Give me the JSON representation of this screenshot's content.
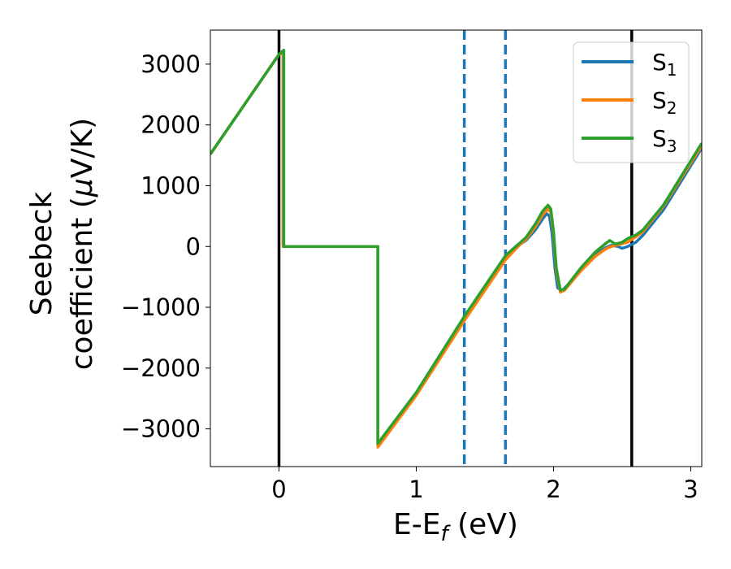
{
  "chart_data": {
    "type": "line",
    "title": "",
    "xlabel": "E-E",
    "xlabel_sub": "f",
    "xlabel_unit": " (eV)",
    "ylabel_line1": "Seebeck",
    "ylabel_line2_pre": "coefficient  (",
    "ylabel_line2_mu": "μ",
    "ylabel_line2_post": "V/K)",
    "xlim": [
      -0.5,
      3.08
    ],
    "ylim": [
      -3620,
      3560
    ],
    "xticks": [
      0,
      1,
      2,
      3
    ],
    "xtick_labels": [
      "0",
      "1",
      "2",
      "3"
    ],
    "yticks": [
      -3000,
      -2000,
      -1000,
      0,
      1000,
      2000,
      3000
    ],
    "ytick_labels": [
      "−3000",
      "−2000",
      "−1000",
      "0",
      "1000",
      "2000",
      "3000"
    ],
    "legend_placement": "top-right",
    "grid": false,
    "vlines_solid": [
      0.0,
      2.57
    ],
    "vlines_dashed": [
      1.35,
      1.65
    ],
    "vline_solid_color": "#000000",
    "vline_dashed_color": "#1f77b4",
    "series": [
      {
        "name": "S",
        "sub": "1",
        "color": "#1f77b4",
        "points": [
          [
            -0.5,
            1520
          ],
          [
            0.0,
            3160
          ],
          [
            0.03,
            3180
          ],
          [
            0.03,
            0
          ],
          [
            0.72,
            0
          ],
          [
            0.72,
            -3270
          ],
          [
            1.0,
            -2420
          ],
          [
            1.35,
            -1180
          ],
          [
            1.65,
            -190
          ],
          [
            1.75,
            30
          ],
          [
            1.8,
            100
          ],
          [
            1.87,
            280
          ],
          [
            1.92,
            450
          ],
          [
            1.95,
            540
          ],
          [
            1.97,
            500
          ],
          [
            1.99,
            200
          ],
          [
            2.01,
            -350
          ],
          [
            2.03,
            -680
          ],
          [
            2.06,
            -730
          ],
          [
            2.1,
            -640
          ],
          [
            2.2,
            -380
          ],
          [
            2.3,
            -140
          ],
          [
            2.38,
            -20
          ],
          [
            2.42,
            20
          ],
          [
            2.47,
            0
          ],
          [
            2.5,
            -30
          ],
          [
            2.54,
            0
          ],
          [
            2.6,
            70
          ],
          [
            2.65,
            180
          ],
          [
            2.8,
            600
          ],
          [
            3.08,
            1620
          ]
        ]
      },
      {
        "name": "S",
        "sub": "2",
        "color": "#ff7f0e",
        "points": [
          [
            -0.5,
            1520
          ],
          [
            0.0,
            3160
          ],
          [
            0.03,
            3180
          ],
          [
            0.03,
            0
          ],
          [
            0.72,
            0
          ],
          [
            0.72,
            -3300
          ],
          [
            1.0,
            -2450
          ],
          [
            1.35,
            -1220
          ],
          [
            1.65,
            -220
          ],
          [
            1.75,
            20
          ],
          [
            1.8,
            120
          ],
          [
            1.87,
            330
          ],
          [
            1.92,
            520
          ],
          [
            1.96,
            620
          ],
          [
            1.98,
            560
          ],
          [
            2.0,
            200
          ],
          [
            2.02,
            -400
          ],
          [
            2.05,
            -750
          ],
          [
            2.08,
            -720
          ],
          [
            2.2,
            -400
          ],
          [
            2.3,
            -170
          ],
          [
            2.38,
            -40
          ],
          [
            2.42,
            0
          ],
          [
            2.47,
            30
          ],
          [
            2.54,
            70
          ],
          [
            2.6,
            160
          ],
          [
            2.65,
            240
          ],
          [
            2.8,
            660
          ],
          [
            3.08,
            1660
          ]
        ]
      },
      {
        "name": "S",
        "sub": "3",
        "color": "#2ca02c",
        "points": [
          [
            -0.5,
            1520
          ],
          [
            0.0,
            3160
          ],
          [
            0.035,
            3230
          ],
          [
            0.035,
            0
          ],
          [
            0.72,
            0
          ],
          [
            0.72,
            -3240
          ],
          [
            1.0,
            -2400
          ],
          [
            1.35,
            -1150
          ],
          [
            1.65,
            -150
          ],
          [
            1.75,
            50
          ],
          [
            1.8,
            150
          ],
          [
            1.87,
            380
          ],
          [
            1.92,
            580
          ],
          [
            1.96,
            680
          ],
          [
            1.98,
            620
          ],
          [
            2.0,
            250
          ],
          [
            2.02,
            -350
          ],
          [
            2.05,
            -720
          ],
          [
            2.08,
            -700
          ],
          [
            2.2,
            -350
          ],
          [
            2.3,
            -100
          ],
          [
            2.38,
            50
          ],
          [
            2.41,
            100
          ],
          [
            2.45,
            40
          ],
          [
            2.5,
            70
          ],
          [
            2.54,
            130
          ],
          [
            2.6,
            190
          ],
          [
            2.65,
            270
          ],
          [
            2.8,
            680
          ],
          [
            3.08,
            1700
          ]
        ]
      }
    ]
  }
}
